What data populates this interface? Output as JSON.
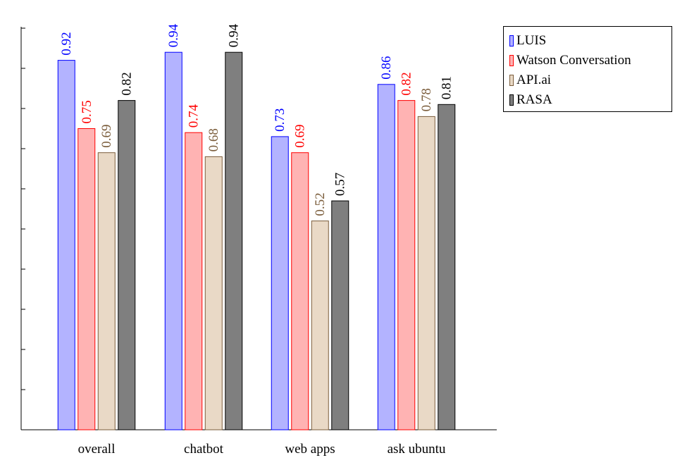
{
  "chart_data": {
    "type": "bar",
    "categories": [
      "overall",
      "chatbot",
      "web apps",
      "ask ubuntu"
    ],
    "series": [
      {
        "name": "LUIS",
        "values": [
          0.92,
          0.94,
          0.73,
          0.86
        ],
        "fill": "#b3b3ff",
        "stroke": "#0000ff",
        "label_color": "#0000ff"
      },
      {
        "name": "Watson Conversation",
        "values": [
          0.75,
          0.74,
          0.69,
          0.82
        ],
        "fill": "#ffb3b3",
        "stroke": "#ff0000",
        "label_color": "#ff0000"
      },
      {
        "name": "API.ai",
        "values": [
          0.69,
          0.68,
          0.52,
          0.78
        ],
        "fill": "#e9d9c6",
        "stroke": "#7a5c3a",
        "label_color": "#7a5c3a"
      },
      {
        "name": "RASA",
        "values": [
          0.82,
          0.94,
          0.57,
          0.81
        ],
        "fill": "#7f7f7f",
        "stroke": "#000000",
        "label_color": "#000000"
      }
    ],
    "value_labels": [
      "0.92",
      "0.75",
      "0.69",
      "0.82",
      "0.94",
      "0.74",
      "0.68",
      "0.94",
      "0.73",
      "0.69",
      "0.52",
      "0.57",
      "0.86",
      "0.82",
      "0.78",
      "0.81"
    ],
    "title": "",
    "xlabel": "",
    "ylabel": "",
    "ylim": [
      0,
      1.0
    ],
    "y_ticks": [
      0,
      0.1,
      0.2,
      0.3,
      0.4,
      0.5,
      0.6,
      0.7,
      0.8,
      0.9,
      1.0
    ],
    "y_tick_labels_shown": false,
    "grid": false,
    "legend_position": "outside-right-top"
  }
}
